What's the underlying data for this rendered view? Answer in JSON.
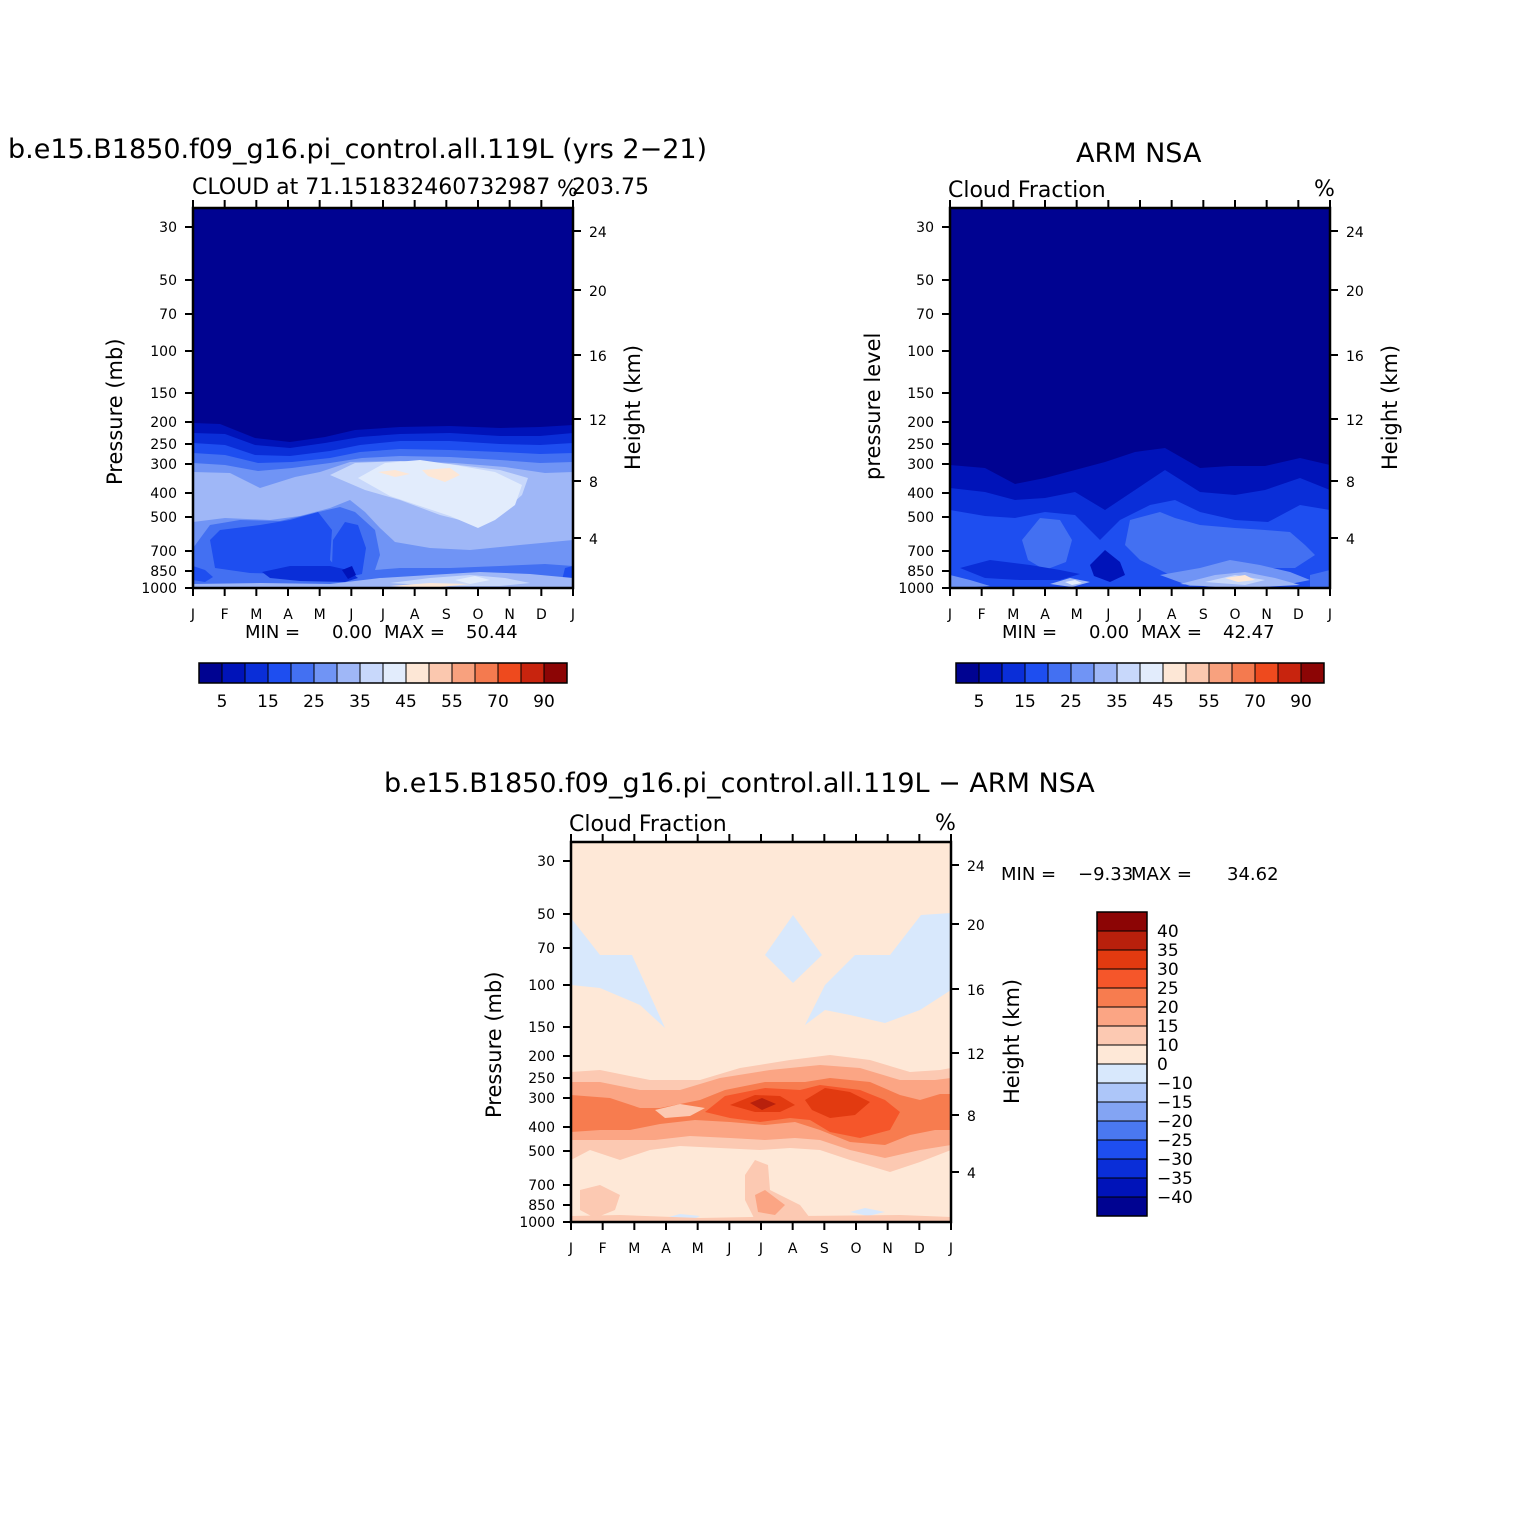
{
  "chart_data": [
    {
      "type": "heatmap",
      "id": "model",
      "title": "b.e15.B1850.f09_g16.pi_control.all.119L (yrs 2−21)",
      "subtitle_left": "CLOUD at 71.151832460732987",
      "subtitle_right": "203.75",
      "units_label": "%",
      "xlabel": "",
      "ylabel": "Pressure (mb)",
      "ylabel_right": "Height (km)",
      "months": [
        "J",
        "F",
        "M",
        "A",
        "M",
        "J",
        "J",
        "A",
        "S",
        "O",
        "N",
        "D",
        "J"
      ],
      "pressure_ticks": [
        30,
        50,
        70,
        100,
        150,
        200,
        250,
        300,
        400,
        500,
        700,
        850,
        1000
      ],
      "height_ticks": [
        24,
        20,
        16,
        12,
        8,
        4
      ],
      "min_label": "MIN =",
      "min_value": "0.00",
      "max_label": "MAX =",
      "max_value": "50.44",
      "colorbar_labels": [
        "5",
        "15",
        "25",
        "35",
        "45",
        "55",
        "70",
        "90"
      ],
      "contour_levels": [
        5,
        10,
        15,
        20,
        25,
        30,
        35,
        40,
        45,
        50,
        55,
        60,
        70,
        80,
        90
      ],
      "notes": "cloud fraction % near zero above ~250 mb; 20-40% between 300 and 500 mb peaking ~45% in Jul-Sep; 15-30% in lower troposphere"
    },
    {
      "type": "heatmap",
      "id": "obs",
      "title": "ARM NSA",
      "subtitle_left": "Cloud Fraction",
      "units_label": "%",
      "ylabel": "pressure level",
      "ylabel_right": "Height (km)",
      "months": [
        "J",
        "F",
        "M",
        "A",
        "M",
        "J",
        "J",
        "A",
        "S",
        "O",
        "N",
        "D",
        "J"
      ],
      "pressure_ticks": [
        30,
        50,
        70,
        100,
        150,
        200,
        250,
        300,
        400,
        500,
        700,
        850,
        1000
      ],
      "height_ticks": [
        24,
        20,
        16,
        12,
        8,
        4
      ],
      "min_label": "MIN =",
      "min_value": "0.00",
      "max_label": "MAX =",
      "max_value": "42.47",
      "colorbar_labels": [
        "5",
        "15",
        "25",
        "35",
        "45",
        "55",
        "70",
        "90"
      ],
      "contour_levels": [
        5,
        10,
        15,
        20,
        25,
        30,
        35,
        40,
        45,
        50,
        55,
        60,
        70,
        80,
        90
      ]
    },
    {
      "type": "heatmap",
      "id": "diff",
      "title": "b.e15.B1850.f09_g16.pi_control.all.119L − ARM NSA",
      "subtitle_left": "Cloud Fraction",
      "units_label": "%",
      "ylabel": "Pressure (mb)",
      "ylabel_right": "Height (km)",
      "months": [
        "J",
        "F",
        "M",
        "A",
        "M",
        "J",
        "J",
        "A",
        "S",
        "O",
        "N",
        "D",
        "J"
      ],
      "pressure_ticks": [
        30,
        50,
        70,
        100,
        150,
        200,
        250,
        300,
        400,
        500,
        700,
        850,
        1000
      ],
      "height_ticks": [
        24,
        20,
        16,
        12,
        8,
        4
      ],
      "min_label": "MIN =",
      "min_value": "−9.33",
      "max_label": "MAX =",
      "max_value": "34.62",
      "colorbar_labels": [
        "40",
        "35",
        "30",
        "25",
        "20",
        "15",
        "10",
        "0",
        "−10",
        "−15",
        "−20",
        "−25",
        "−30",
        "−35",
        "−40"
      ],
      "contour_levels": [
        -40,
        -35,
        -30,
        -25,
        -20,
        -15,
        -10,
        0,
        10,
        15,
        20,
        25,
        30,
        35,
        40
      ]
    }
  ],
  "colors": {
    "seq": [
      "#000391",
      "#0013b9",
      "#0a2ed8",
      "#1e4ef0",
      "#4370f2",
      "#7094f5",
      "#9fb7f7",
      "#c8d8fb",
      "#e2ecfc",
      "#fde7d6",
      "#fbc8af",
      "#f8a17e",
      "#f47a4f",
      "#ee4a1e",
      "#c8240e",
      "#8c0505"
    ],
    "div": [
      "#8c0505",
      "#b8200c",
      "#e23a10",
      "#f5562a",
      "#f77c4f",
      "#fba584",
      "#fcc9b2",
      "#fee8d7",
      "#d8e8fc",
      "#adc6f9",
      "#83a4f3",
      "#4a78f0",
      "#1e4ef0",
      "#0a2ed8",
      "#0013b9",
      "#000391"
    ]
  }
}
